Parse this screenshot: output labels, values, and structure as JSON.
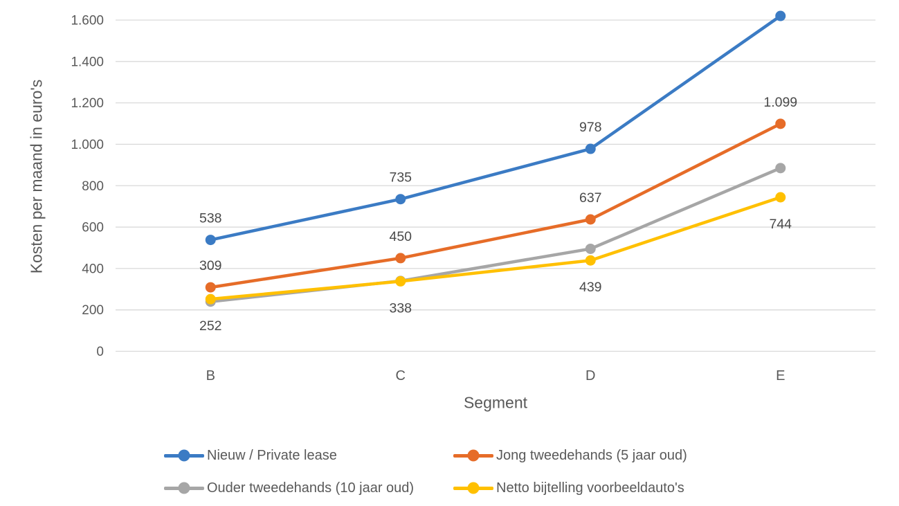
{
  "chart_data": {
    "type": "line",
    "title": "",
    "xlabel": "Segment",
    "ylabel": "Kosten per maand in euro's",
    "categories": [
      "B",
      "C",
      "D",
      "E"
    ],
    "ylim": [
      0,
      1600
    ],
    "ytick_step": 200,
    "ytick_labels": [
      "0",
      "200",
      "400",
      "600",
      "800",
      "1.000",
      "1.200",
      "1.400",
      "1.600"
    ],
    "grid": true,
    "legend_position": "bottom",
    "series": [
      {
        "name": "Nieuw / Private lease",
        "color": "#3B7BC4",
        "values": [
          538,
          735,
          978,
          1620
        ],
        "labels": [
          "538",
          "735",
          "978",
          ""
        ],
        "label_position": "above"
      },
      {
        "name": "Jong tweedehands (5 jaar oud)",
        "color": "#E66C28",
        "values": [
          309,
          450,
          637,
          1099
        ],
        "labels": [
          "309",
          "450",
          "637",
          "1.099"
        ],
        "label_position": "above"
      },
      {
        "name": "Ouder tweedehands (10 jaar oud)",
        "color": "#A6A6A6",
        "values": [
          240,
          340,
          495,
          885
        ],
        "labels": [
          "",
          "",
          "",
          ""
        ],
        "label_position": "above"
      },
      {
        "name": "Netto bijtelling voorbeeldauto's",
        "color": "#FFC000",
        "values": [
          252,
          338,
          439,
          744
        ],
        "labels": [
          "252",
          "338",
          "439",
          "744"
        ],
        "label_position": "below"
      }
    ]
  },
  "colors": {
    "grid": "#D9D9D9",
    "tick_text": "#595959",
    "label_text": "#4A4A4A",
    "background": "#FFFFFF"
  }
}
